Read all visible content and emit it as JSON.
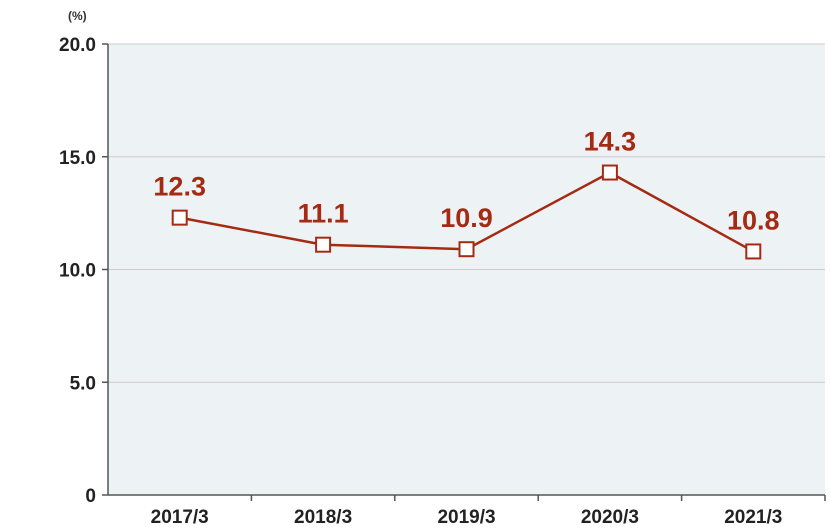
{
  "chart_data": {
    "type": "line",
    "title": "",
    "unit_label": "(%)",
    "xlabel": "",
    "ylabel": "",
    "categories": [
      "2017/3",
      "2018/3",
      "2019/3",
      "2020/3",
      "2021/3"
    ],
    "series": [
      {
        "values": [
          12.3,
          11.1,
          10.9,
          14.3,
          10.8
        ]
      }
    ],
    "data_labels": [
      "12.3",
      "11.1",
      "10.9",
      "14.3",
      "10.8"
    ],
    "y_ticks": [
      "0",
      "5.0",
      "10.0",
      "15.0",
      "20.0"
    ],
    "ylim": [
      0,
      20
    ],
    "grid": true,
    "legend": "none",
    "colors": {
      "line": "#a52a14",
      "plot_background": "#edf3f4",
      "gridline": "#cccccc",
      "axis": "#555555"
    }
  }
}
